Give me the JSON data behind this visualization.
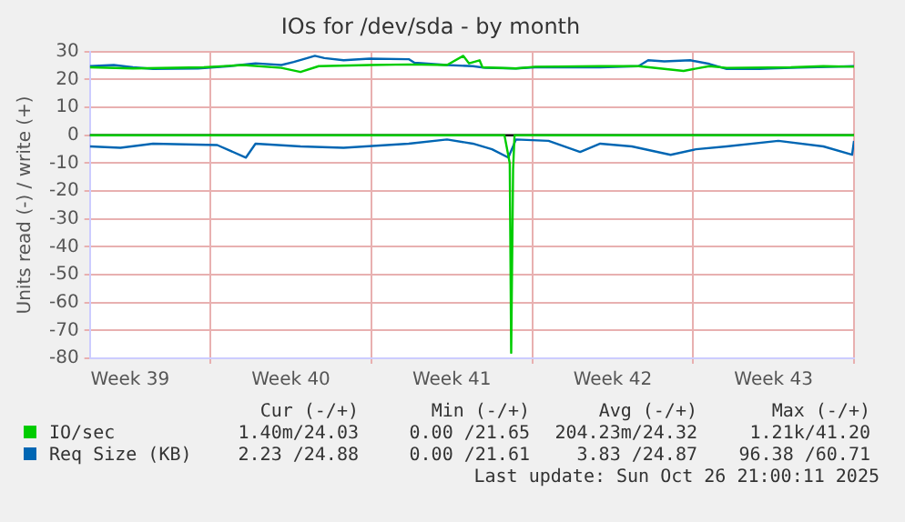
{
  "chart_data": {
    "type": "line",
    "title": "IOs for /dev/sda - by month",
    "ylabel": "Units read (-) / write (+)",
    "xlim": [
      "2025-09-23T18:00",
      "2025-10-27T00:00"
    ],
    "xticks": [
      {
        "value": "2025-09-25T12:00",
        "label": "Week 39"
      },
      {
        "value": "2025-10-02T12:00",
        "label": "Week 40"
      },
      {
        "value": "2025-10-09T12:00",
        "label": "Week 41"
      },
      {
        "value": "2025-10-16T12:00",
        "label": "Week 42"
      },
      {
        "value": "2025-10-23T12:00",
        "label": "Week 43"
      },
      {
        "value": "2025-09-29",
        "label": null
      },
      {
        "value": "2025-10-06",
        "label": null
      },
      {
        "value": "2025-10-13",
        "label": null
      },
      {
        "value": "2025-10-20",
        "label": null
      },
      {
        "value": "2025-10-27",
        "label": null
      }
    ],
    "ylim": [
      -80,
      30
    ],
    "yticks": [
      -80,
      -70,
      -60,
      -50,
      -40,
      -30,
      -20,
      -10,
      0,
      10,
      20,
      30
    ],
    "grid": true,
    "legend": "bottom",
    "marker": "none",
    "line_style": "solid",
    "ref_lines": [
      {
        "axis": "y",
        "value": 0,
        "color": "#000000"
      }
    ],
    "series": [
      {
        "name": "IO/sec",
        "color": "#00cc00",
        "x": [
          "2025-09-23T18:00",
          "2025-09-25T15:00",
          "2025-09-28T17:00",
          "2025-09-30T10:00",
          "2025-10-02T02:00",
          "2025-10-02T22:00",
          "2025-10-03T17:00",
          "2025-10-05T22:00",
          "2025-10-07T15:00",
          "2025-10-09T07:00",
          "2025-10-10T00:00",
          "2025-10-10T06:00",
          "2025-10-10T17:00",
          "2025-10-10T20:00",
          "2025-10-12T07:00",
          "2025-10-13T03:00",
          "2025-10-15T23:00",
          "2025-10-17T15:00",
          "2025-10-19T14:00",
          "2025-10-20T17:00",
          "2025-10-21T11:00",
          "2025-10-24T06:00",
          "2025-10-25T16:00",
          "2025-10-27T00:00"
        ],
        "values": [
          24.4,
          24,
          24.4,
          25.2,
          24.2,
          22.7,
          24.8,
          25.2,
          25.4,
          25.2,
          28.5,
          25.8,
          26.9,
          24.4,
          24,
          24.6,
          24.8,
          24.8,
          23.1,
          24.8,
          24.2,
          24.4,
          24.8,
          24.6
        ]
      },
      {
        "color": "#00cc00",
        "x": [
          "2025-09-23T18:00",
          "2025-10-02T12:00",
          "2025-10-11T19:00",
          "2025-10-12T00:30",
          "2025-10-12T02:00",
          "2025-10-12T04:00",
          "2025-10-12T05:30",
          "2025-10-20T00:00",
          "2025-10-27T00:00"
        ],
        "values": [
          0,
          0,
          0,
          -10,
          -78,
          -12,
          0,
          0,
          0
        ]
      },
      {
        "name": "Req Size (KB)",
        "color": "#0066b3",
        "x": [
          "2025-09-23T18:00",
          "2025-09-24T19:00",
          "2025-09-25T15:00",
          "2025-09-26T12:00",
          "2025-09-28T11:00",
          "2025-09-29T20:00",
          "2025-09-30T23:00",
          "2025-10-02T02:00",
          "2025-10-02T15:00",
          "2025-10-03T05:00",
          "2025-10-03T13:00",
          "2025-10-03T23:00",
          "2025-10-04T19:00",
          "2025-10-05T22:00",
          "2025-10-07T15:00",
          "2025-10-07T21:00",
          "2025-10-09T07:00",
          "2025-10-10T10:00",
          "2025-10-10T23:00",
          "2025-10-12T07:00",
          "2025-10-13T03:00",
          "2025-10-15T23:00",
          "2025-10-17T15:00",
          "2025-10-18T01:00",
          "2025-10-18T18:00",
          "2025-10-19T21:00",
          "2025-10-20T17:00",
          "2025-10-21T11:00",
          "2025-10-22T21:00",
          "2025-10-24T06:00",
          "2025-10-27T00:00"
        ],
        "values": [
          24.8,
          25.2,
          24.4,
          23.8,
          24,
          24.8,
          25.8,
          25.2,
          26.3,
          27.7,
          28.5,
          27.7,
          26.9,
          27.5,
          27.3,
          26,
          25.2,
          24.8,
          24.2,
          24,
          24.4,
          24.4,
          24.8,
          26.9,
          26.5,
          26.9,
          25.6,
          23.8,
          23.8,
          24.2,
          24.8
        ]
      },
      {
        "color": "#0066b3",
        "x": [
          "2025-09-23T18:00",
          "2025-09-25T02:00",
          "2025-09-26T12:00",
          "2025-09-29T07:00",
          "2025-09-30T13:00",
          "2025-09-30T23:00",
          "2025-10-02T22:00",
          "2025-10-04T19:00",
          "2025-10-07T15:00",
          "2025-10-09T07:00",
          "2025-10-10T10:00",
          "2025-10-11T06:00",
          "2025-10-11T23:00",
          "2025-10-12T07:00",
          "2025-10-13T17:00",
          "2025-10-15T02:00",
          "2025-10-15T23:00",
          "2025-10-17T08:00",
          "2025-10-19T00:30",
          "2025-10-20T03:00",
          "2025-10-21T11:00",
          "2025-10-23T17:00",
          "2025-10-25T16:00",
          "2025-10-26T22:00",
          "2025-10-27T00:00"
        ],
        "values": [
          -4,
          -4.5,
          -3,
          -3.5,
          -8,
          -3,
          -4,
          -4.5,
          -3,
          -1.5,
          -3,
          -5,
          -8,
          -1.5,
          -2,
          -6,
          -3,
          -4,
          -7,
          -5,
          -4,
          -2,
          -4,
          -7,
          -2
        ]
      }
    ],
    "annotations": [
      "Cur (-/+)",
      "Min (-/+)",
      "Avg (-/+)",
      "Max (-/+)",
      "1.40m/24.03",
      "0.00 /21.65",
      "204.23m/24.32",
      "1.21k/41.20",
      "2.23 /24.88",
      "0.00 /21.61",
      "3.83 /24.87",
      "96.38 /60.71",
      "Last update: Sun Oct 26 21:00:11 2025"
    ]
  }
}
